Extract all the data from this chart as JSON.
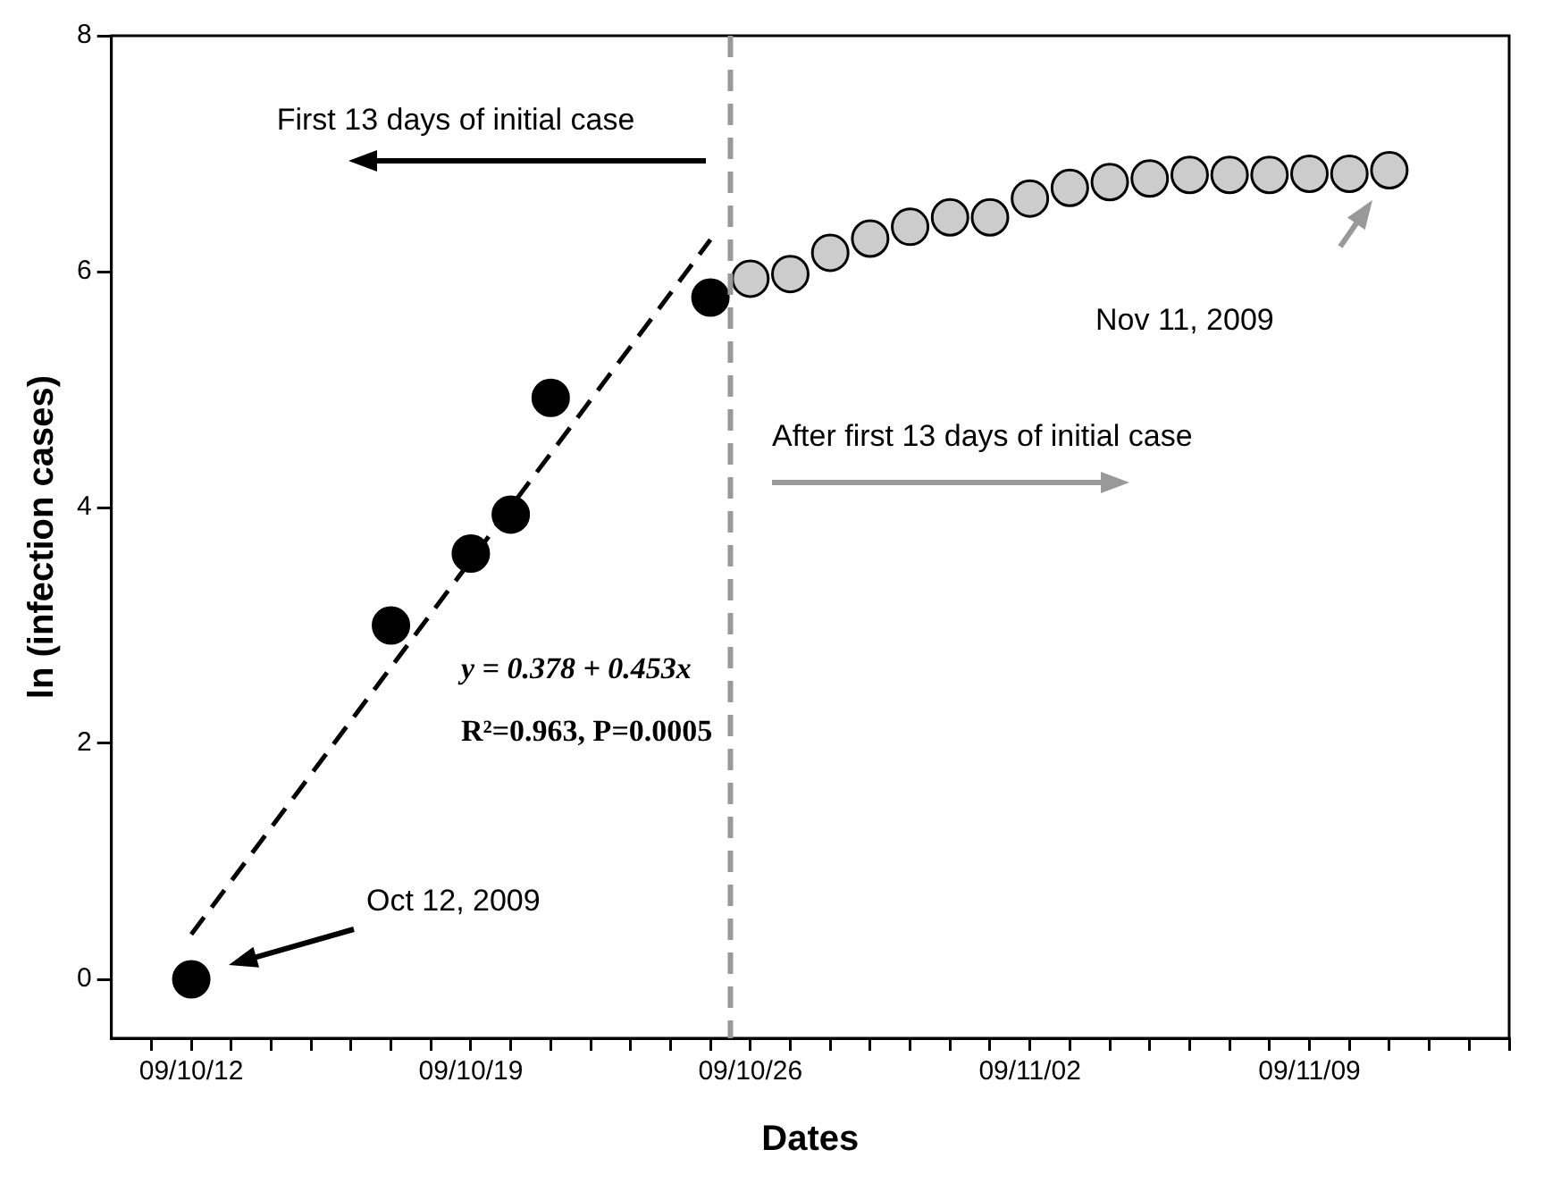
{
  "chart_data": {
    "type": "scatter",
    "xlabel": "Dates",
    "ylabel": "ln (infection cases)",
    "xlim": [
      "2009-10-10",
      "2009-11-14"
    ],
    "xticks": [
      {
        "value": "2009-10-11",
        "label": null
      },
      {
        "value": "2009-10-12",
        "label": "09/10/12"
      },
      {
        "value": "2009-10-13",
        "label": null
      },
      {
        "value": "2009-10-14",
        "label": null
      },
      {
        "value": "2009-10-15",
        "label": null
      },
      {
        "value": "2009-10-16",
        "label": null
      },
      {
        "value": "2009-10-17",
        "label": null
      },
      {
        "value": "2009-10-18",
        "label": null
      },
      {
        "value": "2009-10-19",
        "label": "09/10/19"
      },
      {
        "value": "2009-10-20",
        "label": null
      },
      {
        "value": "2009-10-21",
        "label": null
      },
      {
        "value": "2009-10-22",
        "label": null
      },
      {
        "value": "2009-10-23",
        "label": null
      },
      {
        "value": "2009-10-24",
        "label": null
      },
      {
        "value": "2009-10-25",
        "label": null
      },
      {
        "value": "2009-10-26",
        "label": "09/10/26"
      },
      {
        "value": "2009-10-27",
        "label": null
      },
      {
        "value": "2009-10-28",
        "label": null
      },
      {
        "value": "2009-10-29",
        "label": null
      },
      {
        "value": "2009-10-30",
        "label": null
      },
      {
        "value": "2009-10-31",
        "label": null
      },
      {
        "value": "2009-11-01",
        "label": null
      },
      {
        "value": "2009-11-02",
        "label": "09/11/02"
      },
      {
        "value": "2009-11-03",
        "label": null
      },
      {
        "value": "2009-11-04",
        "label": null
      },
      {
        "value": "2009-11-05",
        "label": null
      },
      {
        "value": "2009-11-06",
        "label": null
      },
      {
        "value": "2009-11-07",
        "label": null
      },
      {
        "value": "2009-11-08",
        "label": null
      },
      {
        "value": "2009-11-09",
        "label": "09/11/09"
      },
      {
        "value": "2009-11-10",
        "label": null
      },
      {
        "value": "2009-11-11",
        "label": null
      },
      {
        "value": "2009-11-12",
        "label": null
      },
      {
        "value": "2009-11-13",
        "label": null
      },
      {
        "value": "2009-11-14",
        "label": null
      }
    ],
    "ylim": [
      -0.5,
      8
    ],
    "yticks": [
      0,
      2,
      4,
      6,
      8
    ],
    "marker": "circle",
    "series": [
      {
        "type": "line",
        "color": "#000000",
        "line_style": "dashed",
        "marker": "none",
        "x": [
          "2009-10-12",
          "2009-10-25"
        ],
        "values": [
          0.38,
          6.27
        ]
      },
      {
        "type": "scatter",
        "color": "#000000",
        "x": [
          "2009-10-12",
          "2009-10-17",
          "2009-10-19",
          "2009-10-20",
          "2009-10-21",
          "2009-10-25"
        ],
        "values": [
          0,
          3.0,
          3.61,
          3.94,
          4.93,
          5.78
        ]
      },
      {
        "type": "scatter",
        "color": "#cccccc",
        "x": [
          "2009-10-26",
          "2009-10-27",
          "2009-10-28",
          "2009-10-29",
          "2009-10-30",
          "2009-10-31",
          "2009-11-01",
          "2009-11-02",
          "2009-11-03",
          "2009-11-04",
          "2009-11-05",
          "2009-11-06",
          "2009-11-07",
          "2009-11-08",
          "2009-11-09",
          "2009-11-10",
          "2009-11-11"
        ],
        "values": [
          5.94,
          5.98,
          6.16,
          6.28,
          6.38,
          6.46,
          6.46,
          6.62,
          6.71,
          6.76,
          6.79,
          6.82,
          6.82,
          6.82,
          6.83,
          6.83,
          6.86
        ]
      }
    ],
    "ref_lines": [
      {
        "axis": "x",
        "value": "2009-10-25T12:00",
        "color": "#999999",
        "line_style": "dashed"
      }
    ],
    "annotations": [
      "First 13 days of initial case",
      "After first 13 days of initial case",
      "y = 0.378 + 0.453x",
      "R²=0.963, P=0.0005",
      "Oct 12, 2009",
      "Nov 11, 2009"
    ]
  }
}
